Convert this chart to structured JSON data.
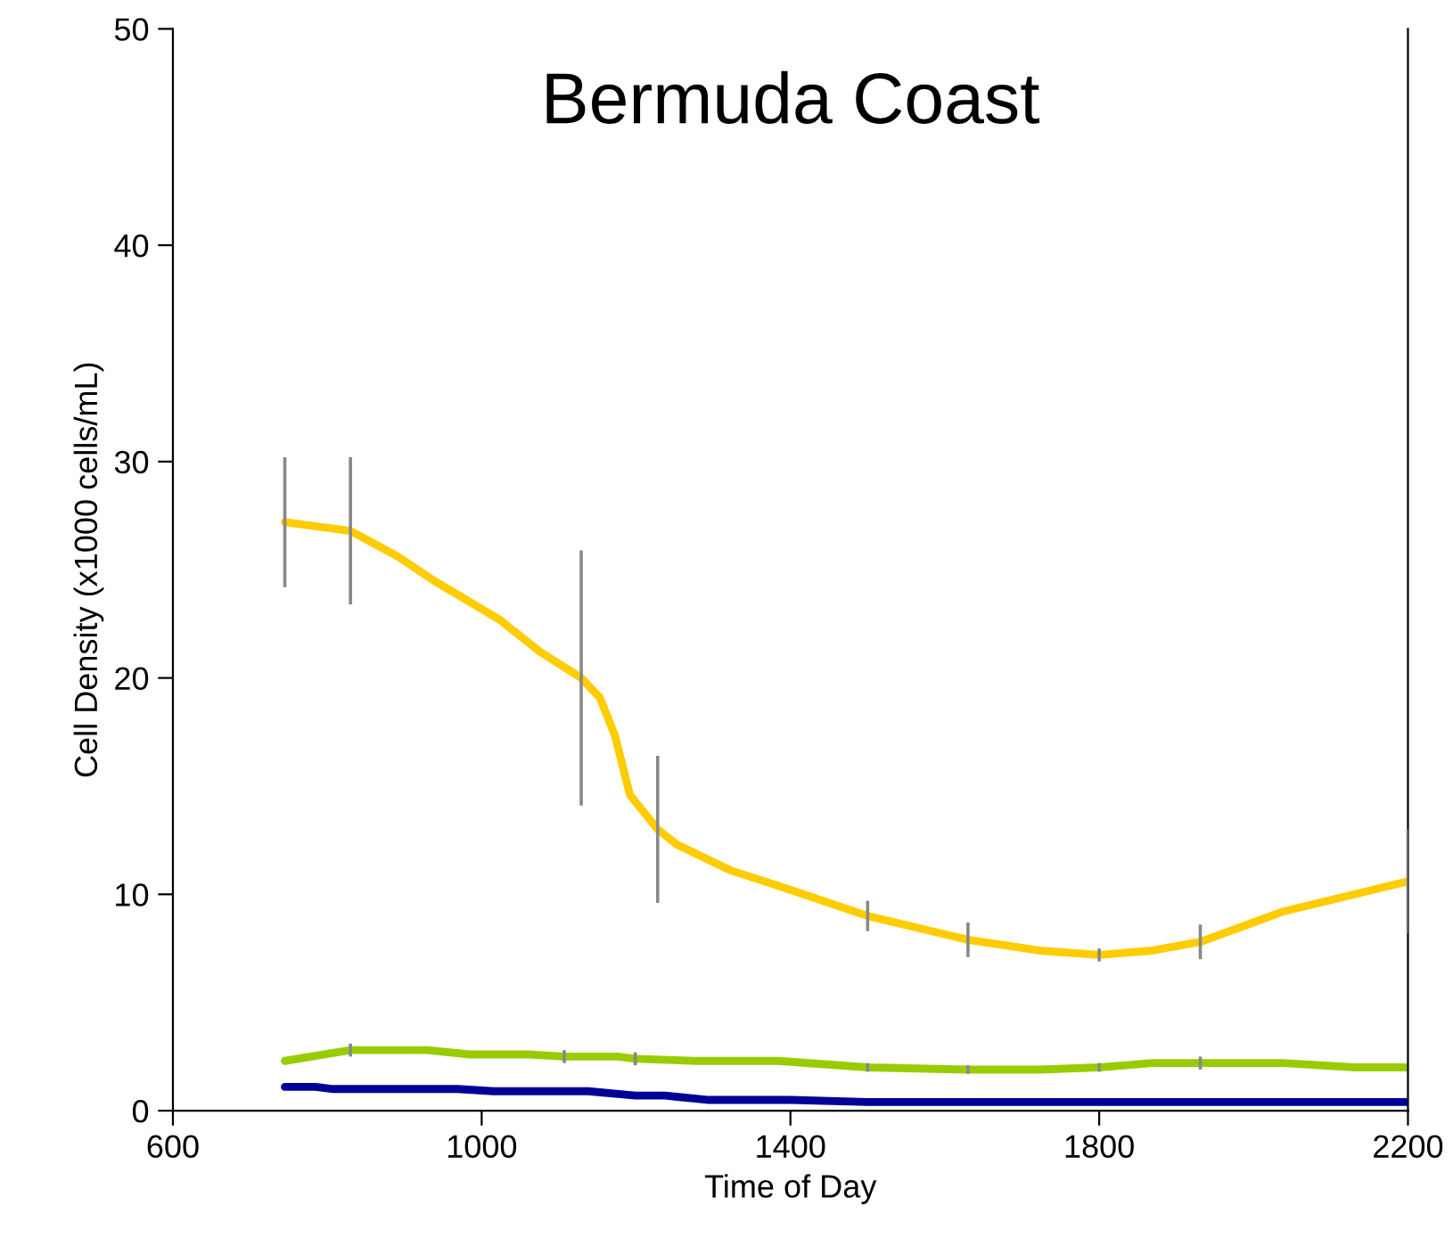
{
  "chart_data": {
    "type": "line",
    "title": "Bermuda Coast",
    "xlabel": "Time of Day",
    "ylabel": "Cell Density (x1000 cells/mL)",
    "xlim": [
      600,
      2200
    ],
    "xticks": [
      600,
      1000,
      1400,
      1800,
      2200
    ],
    "ylim": [
      0,
      50
    ],
    "yticks": [
      0,
      10,
      20,
      30,
      40,
      50
    ],
    "grid": false,
    "legend": false,
    "marker": "none",
    "line_style": "solid",
    "series": [
      {
        "color": "#ffcc00",
        "x": [
          745,
          830,
          892,
          938,
          1023,
          1076,
          1129,
          1153,
          1173,
          1192,
          1228,
          1253,
          1323,
          1392,
          1500,
          1630,
          1723,
          1800,
          1869,
          1931,
          2038,
          2200
        ],
        "values": [
          27.2,
          26.8,
          25.6,
          24.5,
          22.7,
          21.2,
          20.0,
          19.1,
          17.3,
          14.6,
          13.0,
          12.3,
          11.1,
          10.3,
          9.0,
          7.9,
          7.4,
          7.2,
          7.4,
          7.8,
          9.2,
          10.6
        ],
        "errors": [
          3,
          3.4,
          null,
          null,
          null,
          null,
          5.9,
          null,
          null,
          null,
          3.4,
          null,
          null,
          null,
          0.7,
          0.8,
          null,
          0.3,
          null,
          0.8,
          null,
          2.4
        ]
      },
      {
        "color": "#99cc00",
        "x": [
          745,
          830,
          930,
          984,
          1061,
          1107,
          1176,
          1199,
          1277,
          1384,
          1500,
          1630,
          1723,
          1800,
          1869,
          1931,
          2038,
          2131,
          2200
        ],
        "values": [
          2.3,
          2.8,
          2.8,
          2.6,
          2.6,
          2.5,
          2.5,
          2.4,
          2.3,
          2.3,
          2.0,
          1.9,
          1.9,
          2.0,
          2.2,
          2.2,
          2.2,
          2.0,
          2.0
        ],
        "errors": [
          null,
          0.3,
          null,
          null,
          null,
          0.3,
          null,
          0.3,
          null,
          null,
          0.2,
          0.2,
          null,
          0.2,
          null,
          0.3,
          null,
          null,
          null
        ]
      },
      {
        "color": "#000099",
        "x": [
          745,
          785,
          808,
          969,
          1015,
          1138,
          1199,
          1238,
          1292,
          1400,
          1500,
          2200
        ],
        "values": [
          1.1,
          1.1,
          1.0,
          1.0,
          0.9,
          0.9,
          0.7,
          0.7,
          0.5,
          0.5,
          0.4,
          0.4
        ]
      }
    ]
  }
}
